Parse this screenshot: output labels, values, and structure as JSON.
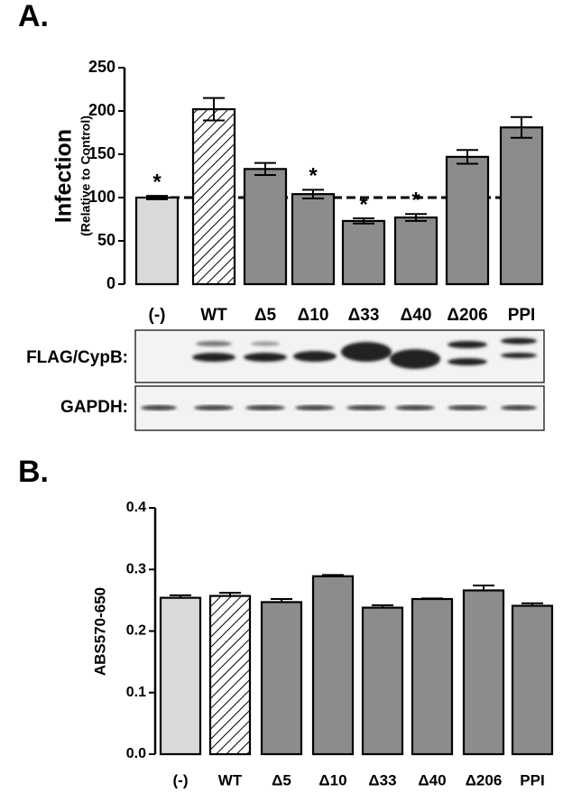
{
  "chart_data": [
    {
      "type": "bar",
      "panel": "A.",
      "ylabel": "Infection",
      "ylabel_sub": "(Relative to Control)",
      "categories": [
        "(-)",
        "WT",
        "Δ5",
        "Δ10",
        "Δ33",
        "Δ40",
        "Δ206",
        "PPI"
      ],
      "values": [
        100,
        202,
        133,
        104,
        73,
        77,
        147,
        181
      ],
      "errors": [
        2,
        13,
        7,
        5,
        3,
        4,
        8,
        12
      ],
      "colors": [
        "#d9d9d9",
        "#ffffff",
        "#8c8c8c",
        "#8c8c8c",
        "#8c8c8c",
        "#8c8c8c",
        "#8c8c8c",
        "#8c8c8c"
      ],
      "hatched": [
        false,
        true,
        false,
        false,
        false,
        false,
        false,
        false
      ],
      "markers": [
        "*",
        null,
        null,
        "*",
        "*",
        "*",
        null,
        null
      ],
      "error_bars": "both",
      "reference_line": 100,
      "ylim": [
        0,
        250
      ],
      "yticks": [
        0,
        50,
        100,
        150,
        200,
        250
      ]
    },
    {
      "type": "bar",
      "panel": "B.",
      "ylabel": "ABS570-650",
      "categories": [
        "(-)",
        "WT",
        "Δ5",
        "Δ10",
        "Δ33",
        "Δ40",
        "Δ206",
        "PPI"
      ],
      "values": [
        0.254,
        0.257,
        0.247,
        0.289,
        0.238,
        0.252,
        0.266,
        0.241
      ],
      "errors": [
        0.004,
        0.005,
        0.005,
        0.002,
        0.004,
        0.001,
        0.008,
        0.004
      ],
      "colors": [
        "#d9d9d9",
        "#ffffff",
        "#8c8c8c",
        "#8c8c8c",
        "#8c8c8c",
        "#8c8c8c",
        "#8c8c8c",
        "#8c8c8c"
      ],
      "hatched": [
        false,
        true,
        false,
        false,
        false,
        false,
        false,
        false
      ],
      "error_bars": "up",
      "ylim": [
        0,
        0.4
      ],
      "yticks": [
        {
          "value": 0,
          "label": "0.0"
        },
        0.1,
        0.2,
        0.3,
        0.4
      ]
    }
  ],
  "blots": [
    {
      "label": "FLAG/CypB:"
    },
    {
      "label": "GAPDH:"
    }
  ]
}
